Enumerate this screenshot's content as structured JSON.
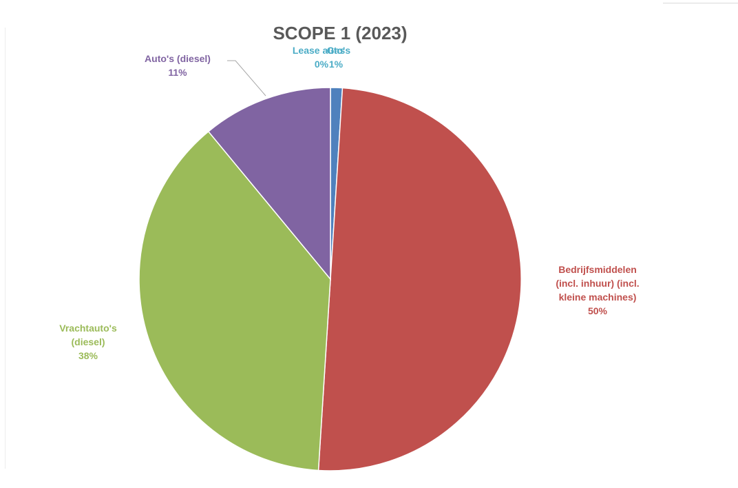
{
  "chart_data": {
    "type": "pie",
    "title": "SCOPE 1 (2023)",
    "start_angle_deg": 0,
    "direction": "clockwise",
    "slices": [
      {
        "label_lines": [
          "Gas"
        ],
        "pct_label": "1%",
        "value": 1,
        "color": "#4f81bd",
        "label_color": "#4bacc6"
      },
      {
        "label_lines": [
          "Bedrijfsmiddelen",
          "(incl. inhuur) (incl.",
          "kleine machines)"
        ],
        "pct_label": "50%",
        "value": 50,
        "color": "#c0504d",
        "label_color": "#c0504d"
      },
      {
        "label_lines": [
          "Vrachtauto's",
          "(diesel)"
        ],
        "pct_label": "38%",
        "value": 38,
        "color": "#9bbb59",
        "label_color": "#9bbb59"
      },
      {
        "label_lines": [
          "Auto's (diesel)"
        ],
        "pct_label": "11%",
        "value": 11,
        "color": "#8064a2",
        "label_color": "#8064a2"
      },
      {
        "label_lines": [
          "Lease auto's"
        ],
        "pct_label": "0%",
        "value": 0,
        "color": "#4bacc6",
        "label_color": "#4bacc6"
      }
    ],
    "legend": "none",
    "data_labels": "outside with percentage"
  }
}
